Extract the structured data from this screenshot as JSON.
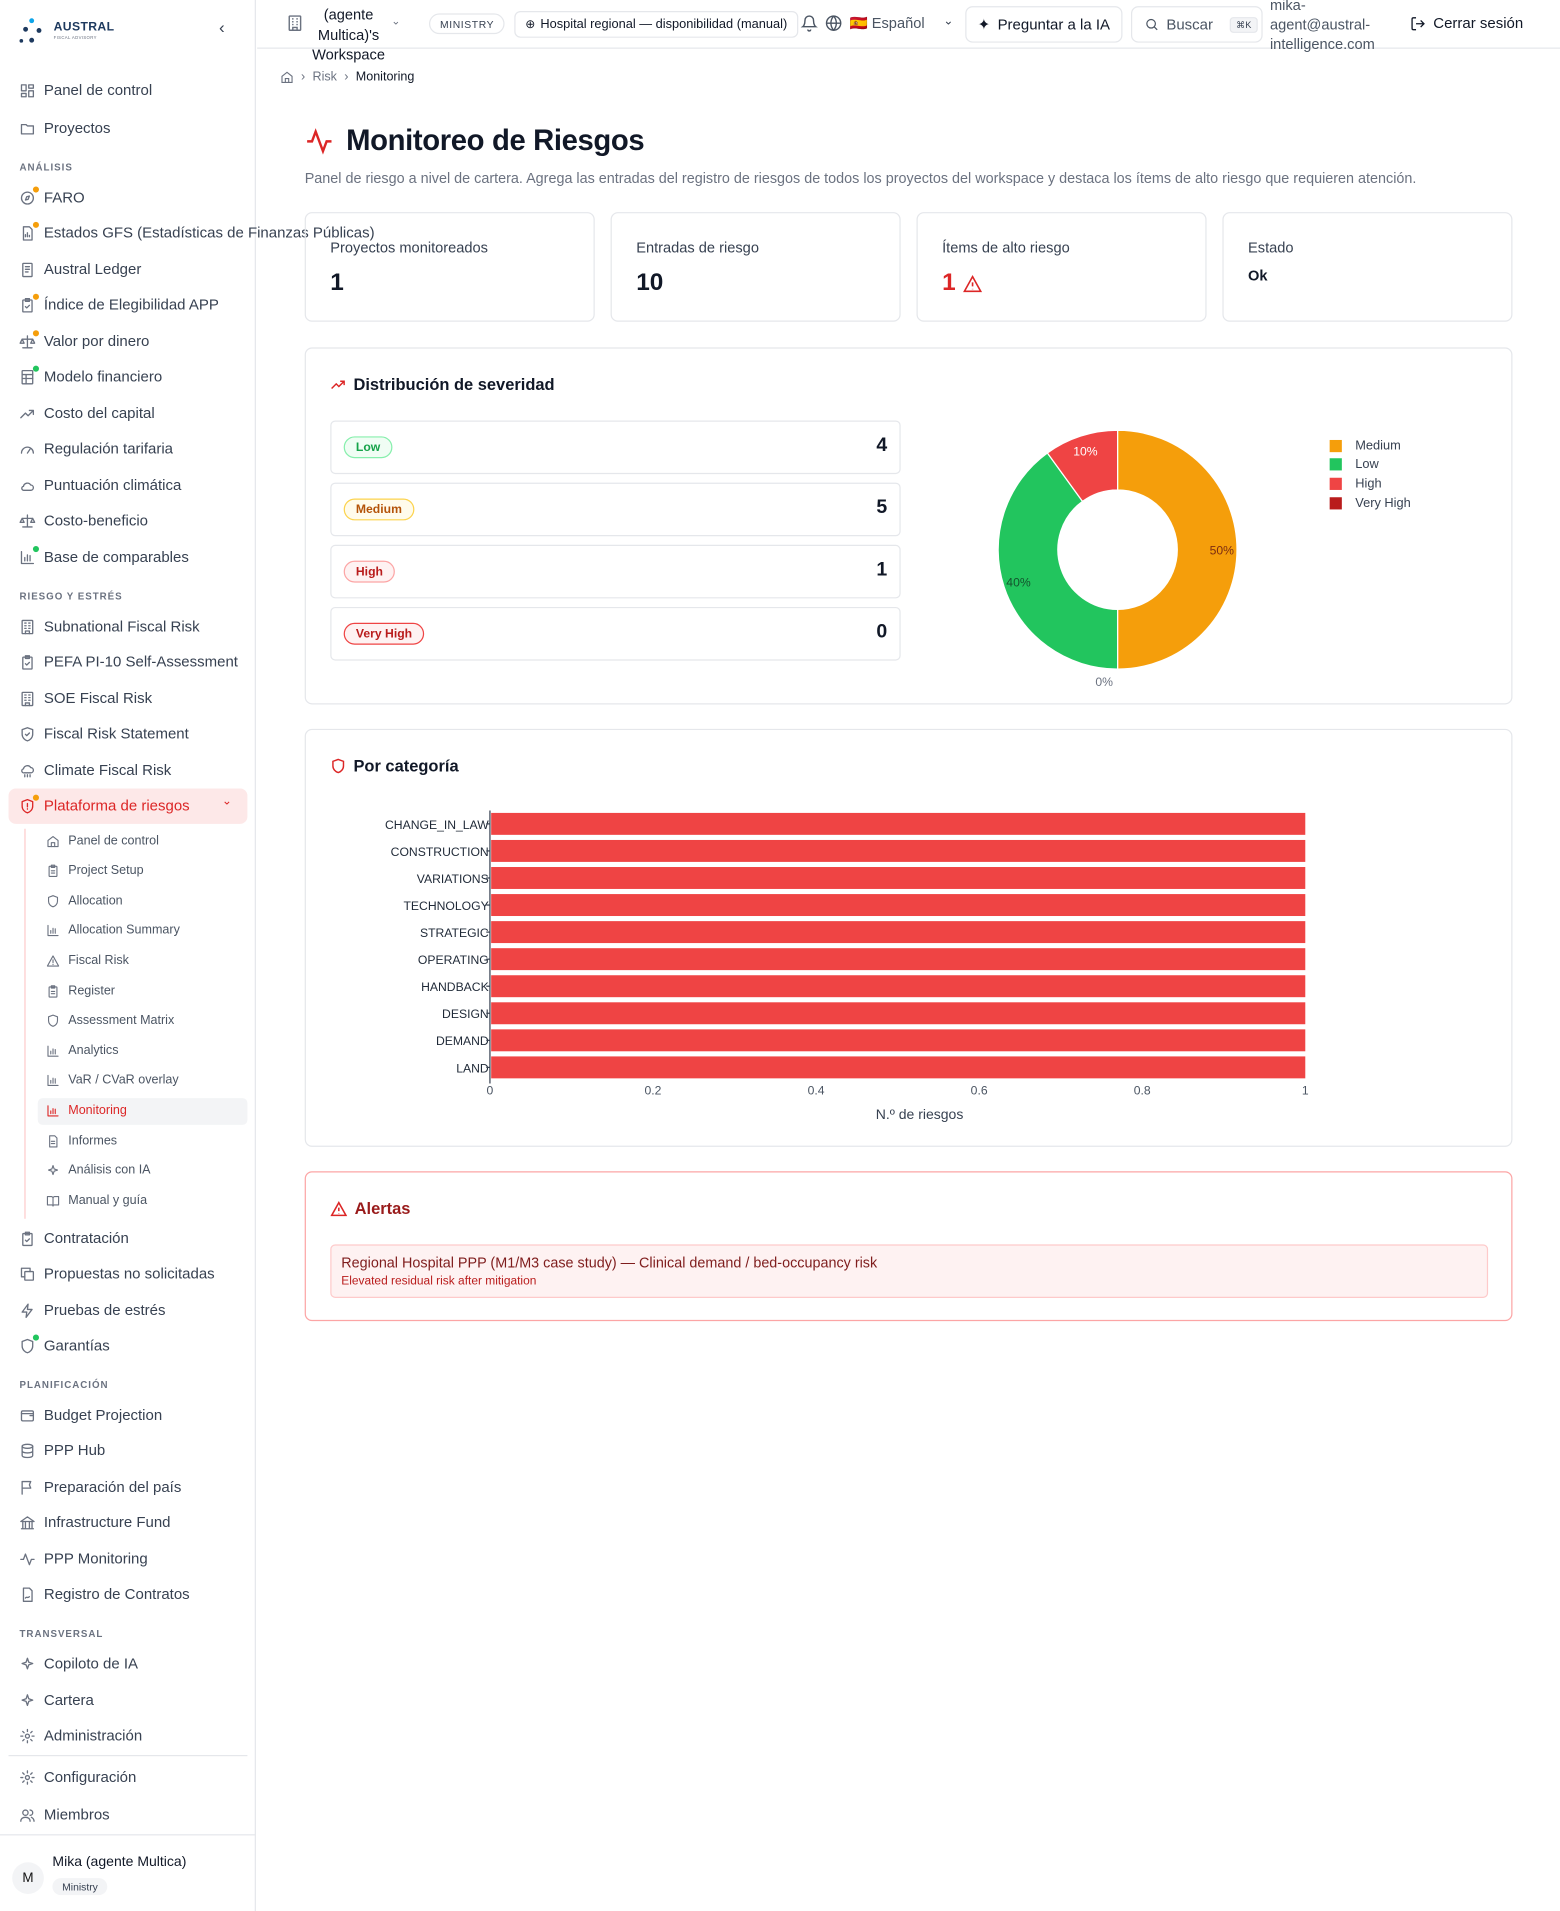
{
  "brand": {
    "name": "AUSTRAL",
    "sub": "FISCAL ADVISORY"
  },
  "sidebar": {
    "top": [
      {
        "label": "Panel de control",
        "icon": "dashboard-icon"
      },
      {
        "label": "Proyectos",
        "icon": "folder-icon"
      }
    ],
    "sections": [
      {
        "title": "ANÁLISIS",
        "items": [
          {
            "label": "FARO",
            "icon": "compass-icon",
            "dot": "orange"
          },
          {
            "label": "Estados GFS (Estadísticas de Finanzas Públicas)",
            "icon": "file-chart-icon",
            "dot": "orange"
          },
          {
            "label": "Austral Ledger",
            "icon": "ledger-icon"
          },
          {
            "label": "Índice de Elegibilidad APP",
            "icon": "clipboard-check-icon",
            "dot": "orange"
          },
          {
            "label": "Valor por dinero",
            "icon": "scale-icon",
            "dot": "orange"
          },
          {
            "label": "Modelo financiero",
            "icon": "spreadsheet-icon",
            "dot": "green"
          },
          {
            "label": "Costo del capital",
            "icon": "trending-up-icon"
          },
          {
            "label": "Regulación tarifaria",
            "icon": "gauge-icon"
          },
          {
            "label": "Puntuación climática",
            "icon": "cloud-icon"
          },
          {
            "label": "Costo-beneficio",
            "icon": "scale-icon"
          },
          {
            "label": "Base de comparables",
            "icon": "bar-chart-icon",
            "dot": "green"
          }
        ]
      },
      {
        "title": "RIESGO Y ESTRÉS",
        "items": [
          {
            "label": "Subnational Fiscal Risk",
            "icon": "building-icon"
          },
          {
            "label": "PEFA PI-10 Self-Assessment",
            "icon": "clipboard-check-icon"
          },
          {
            "label": "SOE Fiscal Risk",
            "icon": "building-icon"
          },
          {
            "label": "Fiscal Risk Statement",
            "icon": "shield-check-icon"
          },
          {
            "label": "Climate Fiscal Risk",
            "icon": "cloud-rain-icon"
          },
          {
            "label": "Plataforma de riesgos",
            "icon": "shield-alert-icon",
            "dot": "orange",
            "active": true
          }
        ]
      }
    ],
    "sub": [
      {
        "label": "Panel de control",
        "icon": "home-icon"
      },
      {
        "label": "Project Setup",
        "icon": "clipboard-icon"
      },
      {
        "label": "Allocation",
        "icon": "shield-icon"
      },
      {
        "label": "Allocation Summary",
        "icon": "bar-chart-icon"
      },
      {
        "label": "Fiscal Risk",
        "icon": "warning-icon"
      },
      {
        "label": "Register",
        "icon": "clipboard-icon"
      },
      {
        "label": "Assessment Matrix",
        "icon": "shield-icon"
      },
      {
        "label": "Analytics",
        "icon": "bar-chart-icon"
      },
      {
        "label": "VaR / CVaR overlay",
        "icon": "bar-chart-icon"
      },
      {
        "label": "Monitoring",
        "icon": "bar-chart-icon",
        "active": true
      },
      {
        "label": "Informes",
        "icon": "file-icon"
      },
      {
        "label": "Análisis con IA",
        "icon": "sparkles-icon"
      },
      {
        "label": "Manual y guía",
        "icon": "book-icon"
      }
    ],
    "after": [
      {
        "label": "Contratación",
        "icon": "clipboard-check-icon"
      },
      {
        "label": "Propuestas no solicitadas",
        "icon": "copy-icon"
      },
      {
        "label": "Pruebas de estrés",
        "icon": "zap-icon"
      },
      {
        "label": "Garantías",
        "icon": "shield-icon",
        "dot": "green"
      }
    ],
    "sections2": [
      {
        "title": "PLANIFICACIÓN",
        "items": [
          {
            "label": "Budget Projection",
            "icon": "wallet-icon"
          },
          {
            "label": "PPP Hub",
            "icon": "database-icon"
          },
          {
            "label": "Preparación del país",
            "icon": "flag-icon"
          },
          {
            "label": "Infrastructure Fund",
            "icon": "landmark-icon"
          },
          {
            "label": "PPP Monitoring",
            "icon": "activity-icon"
          },
          {
            "label": "Registro de Contratos",
            "icon": "contract-icon"
          }
        ]
      },
      {
        "title": "TRANSVERSAL",
        "items": [
          {
            "label": "Copiloto de IA",
            "icon": "sparkles-icon"
          },
          {
            "label": "Cartera",
            "icon": "sparkles-icon"
          },
          {
            "label": "Administración",
            "icon": "gear-icon"
          }
        ]
      }
    ],
    "bottom": [
      {
        "label": "Configuración",
        "icon": "gear-icon"
      },
      {
        "label": "Miembros",
        "icon": "users-icon"
      }
    ],
    "user": {
      "initial": "M",
      "name": "Mika (agente Multica)",
      "role": "Ministry"
    }
  },
  "header": {
    "workspace": "(agente Multica)'s Workspace",
    "badge": "MINISTRY",
    "project": "Hospital regional — disponibilidad (manual)",
    "language": "🇪🇸 Español",
    "ask": "Preguntar a la IA",
    "search": "Buscar",
    "kbd": "⌘K",
    "email": "mika-agent@austral-intelligence.com",
    "logout": "Cerrar sesión"
  },
  "breadcrumb": {
    "l1": "Risk",
    "l2": "Monitoring"
  },
  "page": {
    "title": "Monitoreo de Riesgos",
    "description": "Panel de riesgo a nivel de cartera. Agrega las entradas del registro de riesgos de todos los proyectos del workspace y destaca los ítems de alto riesgo que requieren atención."
  },
  "kpis": [
    {
      "label": "Proyectos monitoreados",
      "value": "1"
    },
    {
      "label": "Entradas de riesgo",
      "value": "10"
    },
    {
      "label": "Ítems de alto riesgo",
      "value": "1"
    },
    {
      "label": "Estado",
      "value": "Ok"
    }
  ],
  "severity": {
    "title": "Distribución de severidad",
    "rows": [
      {
        "label": "Low",
        "count": "4",
        "color": "#16a34a",
        "bg": "#f0fdf4",
        "border": "#86efac"
      },
      {
        "label": "Medium",
        "count": "5",
        "color": "#b45309",
        "bg": "#fffbeb",
        "border": "#fcd34d"
      },
      {
        "label": "High",
        "count": "1",
        "color": "#b91c1c",
        "bg": "#fef2f2",
        "border": "#fca5a5"
      },
      {
        "label": "Very High",
        "count": "0",
        "color": "#b91c1c",
        "bg": "#fef2f2",
        "border": "#ef4444"
      }
    ]
  },
  "chart_data": [
    {
      "type": "pie",
      "donut": true,
      "categories": [
        "Medium",
        "Low",
        "High",
        "Very High"
      ],
      "values": [
        5,
        4,
        1,
        0
      ],
      "labels": [
        "50%",
        "40%",
        "10%",
        "0%"
      ],
      "colors": [
        "#f59e0b",
        "#22c55e",
        "#ef4444",
        "#b91c1c"
      ],
      "legend": "right"
    },
    {
      "type": "bar",
      "orientation": "horizontal",
      "title": "Por categoría",
      "categories": [
        "CHANGE_IN_LAW",
        "CONSTRUCTION",
        "VARIATIONS",
        "TECHNOLOGY",
        "STRATEGIC",
        "OPERATING",
        "HANDBACK",
        "DESIGN",
        "DEMAND",
        "LAND"
      ],
      "values": [
        1,
        1,
        1,
        1,
        1,
        1,
        1,
        1,
        1,
        1
      ],
      "xlabel": "N.º de riesgos",
      "ylabel": "",
      "xlim": [
        0,
        1
      ],
      "xticks": [
        "0",
        "0.2",
        "0.4",
        "0.6",
        "0.8",
        "1"
      ],
      "color": "#ef4444"
    }
  ],
  "alerts": {
    "title": "Alertas",
    "items": [
      {
        "title": "Regional Hospital PPP (M1/M3 case study) — Clinical demand / bed-occupancy risk",
        "sub": "Elevated residual risk after mitigation"
      }
    ]
  }
}
